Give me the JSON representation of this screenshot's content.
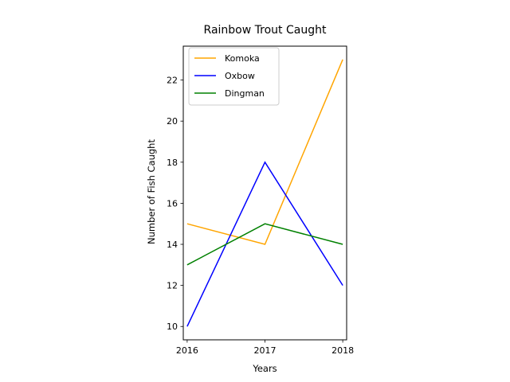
{
  "chart_data": {
    "type": "line",
    "title": "Rainbow Trout Caught",
    "xlabel": "Years",
    "ylabel": "Number of Fish Caught",
    "x": [
      2016,
      2017,
      2018
    ],
    "xticks": [
      "2016",
      "2017",
      "2018"
    ],
    "yticks": [
      "10",
      "12",
      "14",
      "16",
      "18",
      "20",
      "22"
    ],
    "xlim": [
      2015.95,
      2018.05
    ],
    "ylim": [
      9.35,
      23.65
    ],
    "grid": false,
    "legend": {
      "placement": "upper-left"
    },
    "series": [
      {
        "name": "Komoka",
        "color": "#ffa500",
        "values": [
          15,
          14,
          23
        ]
      },
      {
        "name": "Oxbow",
        "color": "#0000ff",
        "values": [
          10,
          18,
          12
        ]
      },
      {
        "name": "Dingman",
        "color": "#008000",
        "values": [
          13,
          15,
          14
        ]
      }
    ]
  }
}
